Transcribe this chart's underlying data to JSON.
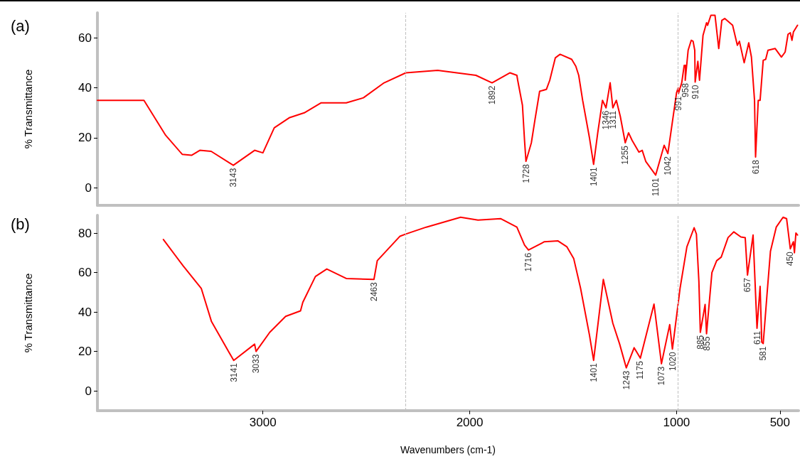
{
  "chart_data": [
    {
      "type": "line",
      "title": "(a)",
      "ylabel": "% Transmittance",
      "xlim": [
        3800,
        410
      ],
      "ylim": [
        -7,
        70
      ],
      "yticks": [
        0,
        20,
        40,
        60
      ],
      "tick_labels": "y",
      "grid": false,
      "marker": "none",
      "line_style": "solid",
      "ref_lines": [
        {
          "axis": "x",
          "value": 2310,
          "color": "#c0c0c0",
          "line_style": "dashed"
        },
        {
          "axis": "x",
          "value": 995,
          "color": "#c0c0c0",
          "line_style": "dashed"
        }
      ],
      "annotations": [
        {
          "text": "3143",
          "x": 3143,
          "y": 9
        },
        {
          "text": "1892",
          "x": 1892,
          "y": 42
        },
        {
          "text": "1728",
          "x": 1728,
          "y": 10.6
        },
        {
          "text": "1401",
          "x": 1401,
          "y": 9.4
        },
        {
          "text": "1346",
          "x": 1341,
          "y": 32
        },
        {
          "text": "1311",
          "x": 1308,
          "y": 32
        },
        {
          "text": "1255",
          "x": 1248,
          "y": 18
        },
        {
          "text": "1101",
          "x": 1101,
          "y": 5.1
        },
        {
          "text": "1042",
          "x": 1042,
          "y": 13.7
        },
        {
          "text": "991",
          "x": 991,
          "y": 37.7
        },
        {
          "text": "958",
          "x": 958,
          "y": 43
        },
        {
          "text": "910",
          "x": 910,
          "y": 42.3
        },
        {
          "text": "618",
          "x": 618,
          "y": 12.3
        }
      ],
      "series": [
        {
          "color": "#ff0000",
          "x": [
            3800,
            3575,
            3470,
            3390,
            3345,
            3305,
            3250,
            3150,
            3143,
            3040,
            3000,
            2945,
            2873,
            2800,
            2718,
            2597,
            2514,
            2414,
            2309,
            2155,
            1970,
            1892,
            1805,
            1772,
            1768,
            1745,
            1735,
            1728,
            1702,
            1685,
            1662,
            1629,
            1613,
            1586,
            1563,
            1507,
            1487,
            1473,
            1454,
            1421,
            1401,
            1381,
            1358,
            1341,
            1321,
            1308,
            1291,
            1272,
            1248,
            1232,
            1215,
            1182,
            1166,
            1149,
            1101,
            1060,
            1042,
            1000,
            992,
            991,
            975,
            963,
            957,
            958,
            944,
            929,
            920,
            912,
            910,
            897,
            889,
            872,
            855,
            850,
            834,
            814,
            796,
            781,
            767,
            729,
            706,
            696,
            673,
            651,
            638,
            623,
            618,
            605,
            596,
            581,
            569,
            558,
            523,
            493,
            475,
            461,
            450,
            442,
            435,
            415
          ],
          "values": [
            35,
            35,
            21,
            13.4,
            13,
            15,
            14.6,
            9.4,
            9,
            15,
            14,
            24,
            28,
            30,
            34,
            34,
            36,
            42,
            46,
            47,
            45,
            42,
            46,
            45,
            43,
            33,
            19,
            10.6,
            18,
            27,
            38.6,
            39.4,
            43,
            52,
            53.4,
            51.4,
            48.6,
            45,
            35,
            20,
            9.4,
            22,
            35,
            32,
            42,
            32,
            35,
            28.6,
            18,
            22,
            19,
            14.3,
            15,
            10.6,
            5.1,
            17,
            13.7,
            38,
            40,
            37.7,
            42,
            49,
            49,
            43,
            55,
            59,
            58.6,
            55,
            42.3,
            50.6,
            43,
            61,
            66,
            65,
            69,
            69,
            55.7,
            67,
            67.7,
            65,
            57,
            58.6,
            50,
            58,
            52.3,
            35,
            12.3,
            35,
            35,
            51,
            51.4,
            55,
            55.7,
            52.3,
            54.3,
            61.4,
            62,
            59,
            62.3,
            65
          ]
        }
      ]
    },
    {
      "type": "line",
      "title": "(b)",
      "ylabel": "% Transmittance",
      "xlabel": "Wavenumbers (cm-1)",
      "xlim": [
        3800,
        410
      ],
      "xticks": [
        3000,
        2000,
        1000,
        500
      ],
      "ylim": [
        -10,
        89
      ],
      "yticks": [
        0,
        20,
        40,
        60,
        80
      ],
      "grid": false,
      "marker": "none",
      "line_style": "solid",
      "ref_lines": [
        {
          "axis": "x",
          "value": 2310,
          "color": "#c0c0c0",
          "line_style": "dashed"
        },
        {
          "axis": "x",
          "value": 995,
          "color": "#c0c0c0",
          "line_style": "dashed"
        }
      ],
      "annotations": [
        {
          "text": "3141",
          "x": 3141,
          "y": 15.5
        },
        {
          "text": "3033",
          "x": 3033,
          "y": 20
        },
        {
          "text": "2463",
          "x": 2463,
          "y": 56.5
        },
        {
          "text": "1716",
          "x": 1716,
          "y": 71.4
        },
        {
          "text": "1401",
          "x": 1401,
          "y": 15.5
        },
        {
          "text": "1243",
          "x": 1243,
          "y": 11.7
        },
        {
          "text": "1175",
          "x": 1175,
          "y": 16.6
        },
        {
          "text": "1073",
          "x": 1073,
          "y": 13.8
        },
        {
          "text": "1020",
          "x": 1020,
          "y": 21.2
        },
        {
          "text": "885",
          "x": 885,
          "y": 29.7
        },
        {
          "text": "855",
          "x": 855,
          "y": 29
        },
        {
          "text": "657",
          "x": 657,
          "y": 58.7
        },
        {
          "text": "611",
          "x": 611,
          "y": 31.8
        },
        {
          "text": "581",
          "x": 581,
          "y": 24
        },
        {
          "text": "450",
          "x": 450,
          "y": 72
        }
      ],
      "series": [
        {
          "color": "#ff0000",
          "x": [
            3481,
            3387,
            3298,
            3249,
            3166,
            3141,
            3040,
            3033,
            2967,
            2890,
            2818,
            2807,
            2746,
            2691,
            2597,
            2463,
            2447,
            2337,
            2309,
            2210,
            2044,
            1960,
            1851,
            1772,
            1735,
            1716,
            1639,
            1573,
            1530,
            1497,
            1464,
            1421,
            1401,
            1354,
            1308,
            1275,
            1243,
            1205,
            1175,
            1109,
            1073,
            1033,
            1020,
            983,
            950,
            915,
            904,
            892,
            885,
            862,
            855,
            829,
            806,
            784,
            751,
            723,
            689,
            668,
            657,
            630,
            611,
            596,
            588,
            581,
            563,
            546,
            518,
            485,
            468,
            450,
            435,
            430,
            423,
            415
          ],
          "values": [
            76.7,
            63.6,
            52,
            35.3,
            20,
            15.5,
            23.7,
            20,
            29.7,
            37.8,
            40.6,
            44.9,
            58,
            61.8,
            57,
            56.5,
            66,
            78.4,
            79.5,
            83,
            88,
            86.6,
            87.3,
            83,
            73.9,
            71.4,
            75.6,
            76,
            73,
            67,
            52,
            28.3,
            15.5,
            56.5,
            34.3,
            23.7,
            11.7,
            21.9,
            16.6,
            44,
            13.8,
            33.6,
            21.2,
            52,
            73,
            82.7,
            79.5,
            55.5,
            29.7,
            43.8,
            29,
            60,
            66,
            67.8,
            77.7,
            80.6,
            78,
            77.7,
            58.7,
            79,
            31.8,
            53,
            24.7,
            24,
            48.4,
            70.7,
            83,
            88,
            87.3,
            72,
            75.6,
            70,
            80,
            79
          ]
        }
      ]
    }
  ]
}
